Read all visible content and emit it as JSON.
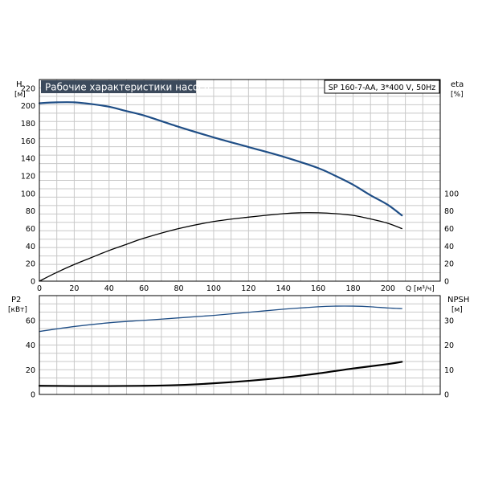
{
  "header": {
    "title": "Рабочие характеристики насоса",
    "model": "SP 160-7-AA, 3*400 V, 50Hz"
  },
  "colors": {
    "grid": "#c8c8c8",
    "frame": "#000000",
    "title_bg": "#3c4a5c",
    "blue": "#1f4e86",
    "black": "#000000"
  },
  "chart_data": [
    {
      "type": "line",
      "name": "upper-chart",
      "xlabel": "Q [м³/ч]",
      "ylabel_left": "H",
      "ylabel_left_unit": "[м]",
      "ylabel_right": "eta",
      "ylabel_right_unit": "[%]",
      "xlim": [
        0,
        230
      ],
      "xticks": [
        0,
        20,
        40,
        60,
        80,
        100,
        120,
        140,
        160,
        180,
        200
      ],
      "ylim_left": [
        0,
        230
      ],
      "yticks_left": [
        0,
        20,
        40,
        60,
        80,
        100,
        120,
        140,
        160,
        180,
        200,
        220
      ],
      "ylim_right": [
        0,
        230
      ],
      "yticks_right": [
        0,
        20,
        40,
        60,
        80,
        100
      ],
      "grid": true,
      "series": [
        {
          "axis": "left",
          "color": "blue",
          "x": [
            0,
            10,
            20,
            30,
            40,
            50,
            60,
            80,
            100,
            120,
            140,
            160,
            170,
            180,
            190,
            200,
            208
          ],
          "y": [
            203,
            204,
            204,
            202,
            199,
            194,
            189,
            176,
            164,
            153,
            142,
            129,
            120,
            110,
            98,
            87,
            75
          ]
        },
        {
          "axis": "right",
          "color": "black",
          "x": [
            0,
            10,
            20,
            30,
            40,
            50,
            60,
            80,
            100,
            120,
            140,
            150,
            160,
            170,
            180,
            190,
            200,
            208
          ],
          "y": [
            0,
            10,
            19,
            27,
            35,
            42,
            49,
            60,
            68,
            73,
            77,
            78,
            78,
            77,
            75,
            71,
            66,
            60
          ]
        }
      ]
    },
    {
      "type": "line",
      "name": "lower-chart",
      "ylabel_left": "P2",
      "ylabel_left_unit": "[кВт]",
      "ylabel_right": "NPSH",
      "ylabel_right_unit": "[м]",
      "xlim": [
        0,
        230
      ],
      "ylim_left": [
        0,
        80
      ],
      "yticks_left": [
        0,
        20,
        40,
        60
      ],
      "ylim_right": [
        0,
        40
      ],
      "yticks_right": [
        0,
        10,
        20,
        30
      ],
      "grid": true,
      "series": [
        {
          "axis": "left",
          "color": "blue",
          "x": [
            0,
            20,
            40,
            60,
            80,
            100,
            120,
            140,
            160,
            170,
            180,
            190,
            200,
            208
          ],
          "y": [
            51,
            55,
            58,
            60,
            62,
            64,
            66.5,
            69,
            71,
            71.5,
            71.5,
            71,
            70,
            69.5
          ]
        },
        {
          "axis": "right",
          "color": "black",
          "x": [
            0,
            20,
            40,
            60,
            80,
            100,
            120,
            140,
            160,
            180,
            200,
            208
          ],
          "y": [
            3.5,
            3.4,
            3.4,
            3.5,
            3.8,
            4.5,
            5.5,
            6.8,
            8.5,
            10.5,
            12.3,
            13.2
          ]
        }
      ]
    }
  ]
}
